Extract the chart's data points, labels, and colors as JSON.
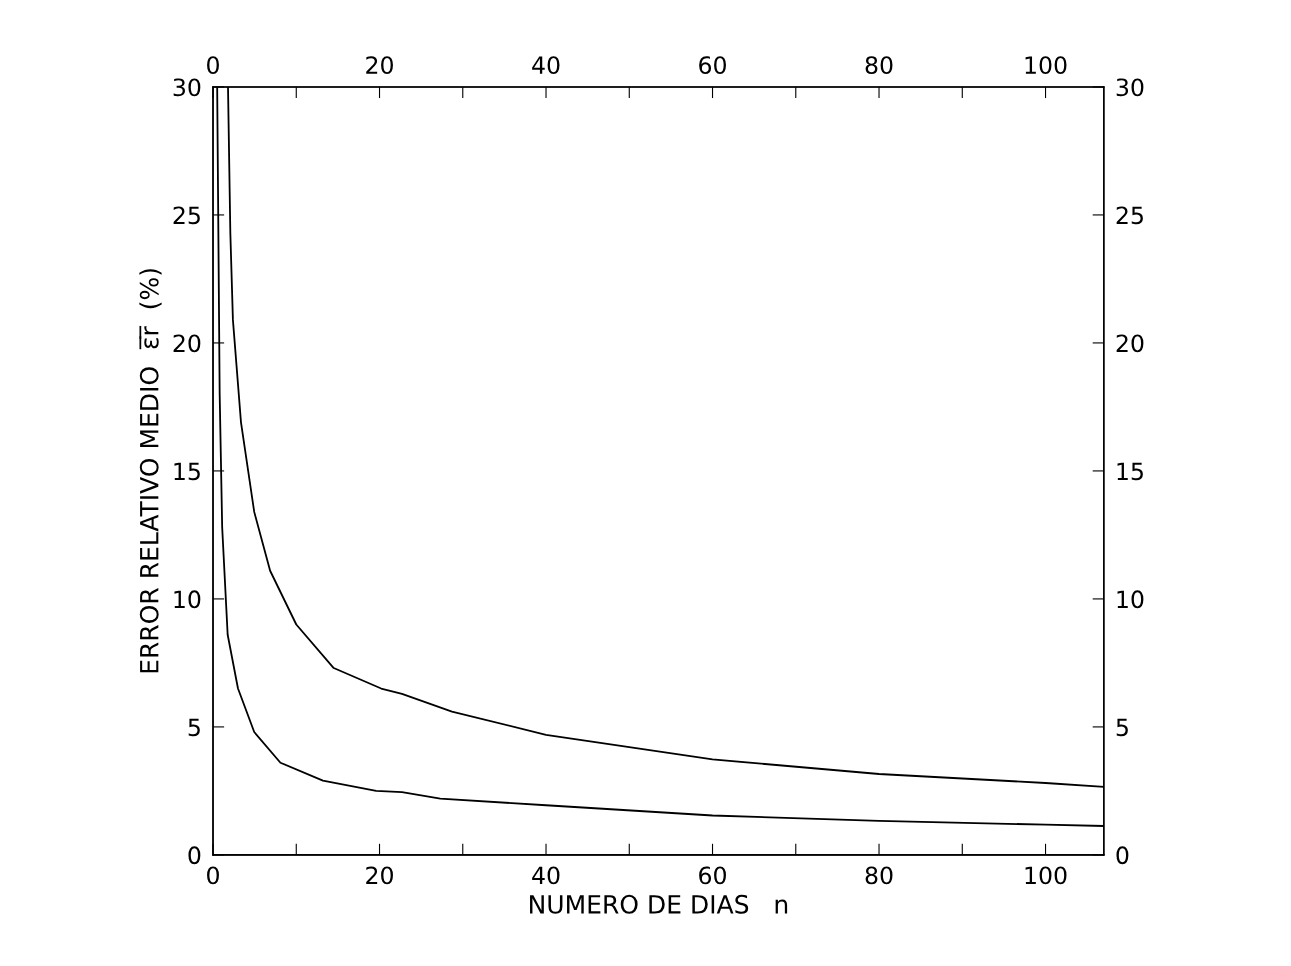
{
  "chart_data": {
    "type": "line",
    "xlabel": "NUMERO DE DIAS   n",
    "ylabel": "ERROR RELATIVO MEDIO  ε̅r̅  (%)",
    "xlim": [
      0,
      107
    ],
    "ylim": [
      0,
      30
    ],
    "xticks": [
      0,
      {
        "value": 10,
        "label": null
      },
      20,
      {
        "value": 30,
        "label": null
      },
      40,
      {
        "value": 50,
        "label": null
      },
      60,
      {
        "value": 70,
        "label": null
      },
      80,
      {
        "value": 90,
        "label": null
      },
      100
    ],
    "yticks": [
      0,
      5,
      10,
      15,
      20,
      25,
      30
    ],
    "x2lim": [
      0,
      107
    ],
    "x2ticks": [
      0,
      {
        "value": 10,
        "label": null
      },
      20,
      {
        "value": 30,
        "label": null
      },
      40,
      {
        "value": 50,
        "label": null
      },
      60,
      {
        "value": 70,
        "label": null
      },
      80,
      {
        "value": 90,
        "label": null
      },
      100
    ],
    "y2lim": [
      0,
      30
    ],
    "y2ticks": [
      0,
      5,
      10,
      15,
      20,
      25,
      30
    ],
    "grid": false,
    "marker": "none",
    "line_style": "solid",
    "series": [
      {
        "color": "#000000",
        "x": [
          1.8,
          2.08,
          2.39,
          3.36,
          4.95,
          6.86,
          10,
          14.5,
          20.2,
          22.7,
          28.7,
          40,
          60,
          80,
          100,
          107
        ],
        "values": [
          30,
          24.3,
          20.9,
          16.9,
          13.4,
          11.1,
          9.0,
          7.3,
          6.5,
          6.29,
          5.6,
          4.69,
          3.73,
          3.16,
          2.81,
          2.66
        ]
      },
      {
        "color": "#000000",
        "x": [
          0.5,
          0.8,
          1.1,
          1.76,
          3.0,
          4.95,
          8.1,
          13.2,
          19.6,
          22.7,
          27.3,
          40,
          60,
          80,
          100,
          107
        ],
        "values": [
          30,
          18,
          12.8,
          8.6,
          6.5,
          4.8,
          3.6,
          2.9,
          2.5,
          2.45,
          2.2,
          1.94,
          1.54,
          1.33,
          1.18,
          1.13
        ]
      }
    ]
  }
}
